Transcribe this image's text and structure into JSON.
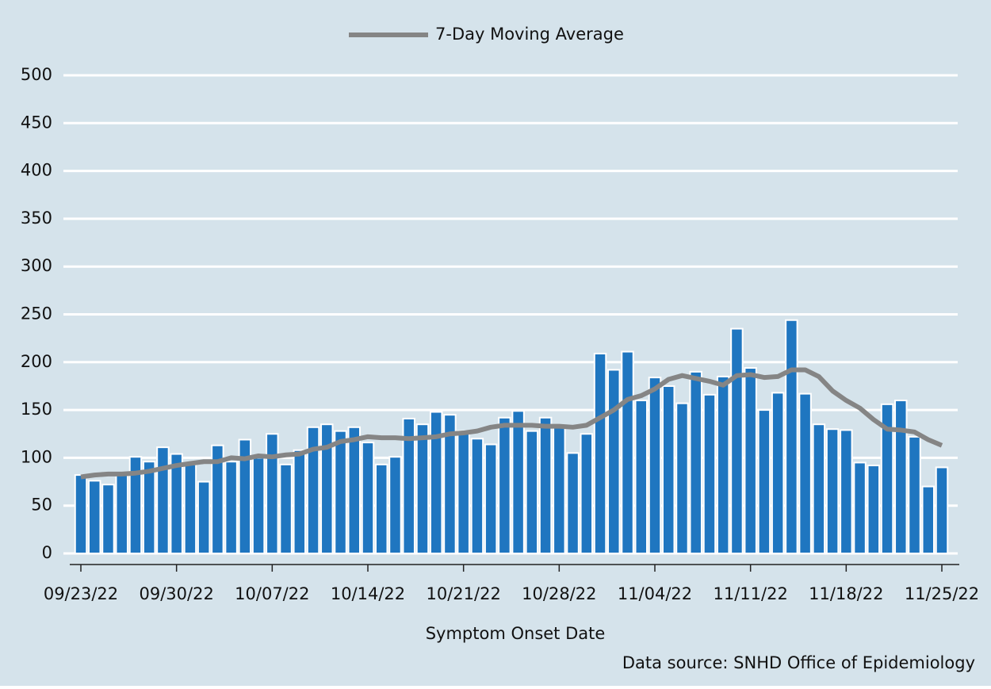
{
  "chart_data": {
    "type": "bar",
    "x_label": "Symptom Onset Date",
    "source": "Data source: SNHD Office of Epidemiology",
    "categories": [
      "09/23/22",
      null,
      null,
      null,
      null,
      null,
      null,
      "09/30/22",
      null,
      null,
      null,
      null,
      null,
      null,
      "10/07/22",
      null,
      null,
      null,
      null,
      null,
      null,
      "10/14/22",
      null,
      null,
      null,
      null,
      null,
      null,
      "10/21/22",
      null,
      null,
      null,
      null,
      null,
      null,
      "10/28/22",
      null,
      null,
      null,
      null,
      null,
      null,
      "11/04/22",
      null,
      null,
      null,
      null,
      null,
      null,
      "11/11/22",
      null,
      null,
      null,
      null,
      null,
      null,
      "11/18/22",
      null,
      null,
      null,
      null,
      null,
      null,
      "11/25/22"
    ],
    "series": [
      {
        "type": "bar",
        "color": "#1f76c0",
        "values": [
          82,
          76,
          72,
          82,
          101,
          96,
          111,
          104,
          93,
          75,
          113,
          96,
          119,
          100,
          125,
          93,
          108,
          132,
          135,
          128,
          132,
          116,
          93,
          101,
          141,
          135,
          148,
          145,
          128,
          120,
          114,
          142,
          149,
          128,
          142,
          133,
          105,
          125,
          209,
          192,
          211,
          160,
          184,
          175,
          157,
          190,
          166,
          185,
          235,
          194,
          150,
          168,
          244,
          167,
          135,
          130,
          129,
          95,
          92,
          156,
          160,
          122,
          70,
          90
        ]
      },
      {
        "type": "line",
        "name": "7-Day Moving Average",
        "color": "#858585",
        "values": [
          80,
          82,
          83,
          83,
          84,
          86,
          89,
          92,
          94,
          96,
          96,
          100,
          99,
          102,
          101,
          103,
          104,
          109,
          111,
          117,
          119,
          122,
          121,
          121,
          120,
          121,
          122,
          125,
          126,
          128,
          132,
          134,
          134,
          134,
          133,
          133,
          132,
          134,
          142,
          150,
          161,
          165,
          172,
          182,
          186,
          183,
          180,
          176,
          186,
          187,
          184,
          185,
          192,
          192,
          185,
          170,
          160,
          152,
          140,
          130,
          129,
          127,
          119,
          113
        ]
      }
    ],
    "ylim": [
      0,
      500
    ],
    "yticks": [
      0,
      50,
      100,
      150,
      200,
      250,
      300,
      350,
      400,
      450,
      500
    ],
    "grid": true,
    "legend": "top"
  }
}
